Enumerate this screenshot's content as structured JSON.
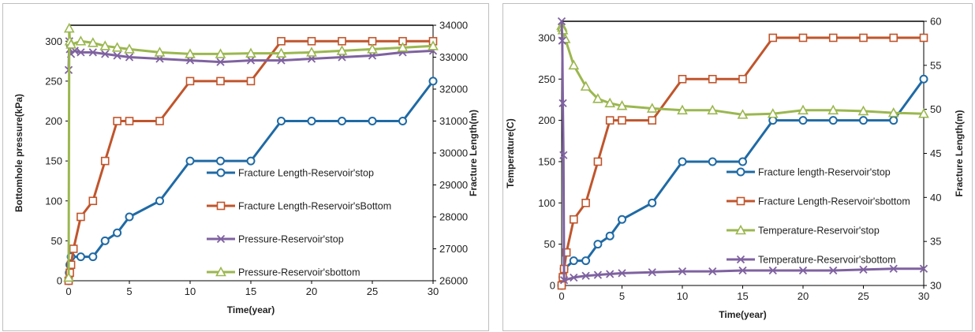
{
  "chart_data": [
    {
      "type": "line",
      "title": "",
      "xlabel": "Time(year)",
      "ylabel": "Bottomhole pressure(kPa)",
      "y2label": "Fracture Length(m)",
      "xlim": [
        0,
        30
      ],
      "ylim": [
        0,
        320
      ],
      "y2lim": [
        26000,
        34000
      ],
      "xticks": [
        "0",
        "5",
        "10",
        "15",
        "20",
        "25",
        "30"
      ],
      "yticks": [
        "0",
        "50",
        "100",
        "150",
        "200",
        "250",
        "300"
      ],
      "y2ticks": [
        "26000",
        "27000",
        "28000",
        "29000",
        "30000",
        "31000",
        "32000",
        "33000",
        "34000"
      ],
      "grid": false,
      "legend_position": "center-right",
      "series": [
        {
          "name": "Fracture Length-Reservoir'stop",
          "color": "#1f6aa5",
          "marker": "circle",
          "axis": "left",
          "x": [
            0,
            0.05,
            0.1,
            0.2,
            1,
            2,
            3,
            4,
            5,
            7.5,
            10,
            12.5,
            15,
            17.5,
            20,
            22.5,
            25,
            27.5,
            30
          ],
          "y": [
            0,
            10,
            20,
            30,
            30,
            30,
            50,
            60,
            80,
            100,
            150,
            150,
            150,
            200,
            200,
            200,
            200,
            200,
            250
          ]
        },
        {
          "name": "Fracture Length-Reservoir'sBottom",
          "color": "#c0552c",
          "marker": "square",
          "axis": "left",
          "x": [
            0,
            0.1,
            0.2,
            0.4,
            1,
            2,
            3,
            4,
            5,
            7.5,
            10,
            12.5,
            15,
            17.5,
            20,
            22.5,
            25,
            27.5,
            30
          ],
          "y": [
            0,
            10,
            20,
            40,
            80,
            100,
            150,
            200,
            200,
            200,
            250,
            250,
            250,
            300,
            300,
            300,
            300,
            300,
            300
          ]
        },
        {
          "name": "Pressure-Reservoir'stop",
          "color": "#7f62a0",
          "marker": "x",
          "axis": "right",
          "x": [
            0,
            0.05,
            0.1,
            0.2,
            0.5,
            1,
            2,
            3,
            4,
            5,
            7.5,
            10,
            12.5,
            15,
            17.5,
            20,
            22.5,
            25,
            27.5,
            30
          ],
          "y": [
            32600,
            33500,
            33250,
            33100,
            33200,
            33150,
            33150,
            33100,
            33050,
            33000,
            32950,
            32900,
            32850,
            32900,
            32900,
            32950,
            33000,
            33050,
            33150,
            33200
          ]
        },
        {
          "name": "Pressure-Reservoir'sbottom",
          "color": "#9bb74f",
          "marker": "triangle",
          "axis": "right",
          "x": [
            0,
            0.05,
            0.1,
            0.2,
            1,
            2,
            3,
            4,
            5,
            7.5,
            10,
            12.5,
            15,
            17.5,
            20,
            22.5,
            25,
            27.5,
            30
          ],
          "y": [
            26100,
            33900,
            33500,
            33400,
            33500,
            33450,
            33350,
            33300,
            33250,
            33150,
            33100,
            33100,
            33120,
            33120,
            33150,
            33200,
            33250,
            33300,
            33350
          ]
        }
      ]
    },
    {
      "type": "line",
      "title": "",
      "xlabel": "Time(year)",
      "ylabel": "Temperature(C)",
      "y2label": "Fracture Length(m)",
      "xlim": [
        0,
        30
      ],
      "ylim": [
        0,
        320
      ],
      "y2lim": [
        30,
        60
      ],
      "xticks": [
        "0",
        "5",
        "10",
        "15",
        "20",
        "25",
        "30"
      ],
      "yticks": [
        "0",
        "50",
        "100",
        "150",
        "200",
        "250",
        "300"
      ],
      "y2ticks": [
        "30",
        "35",
        "40",
        "45",
        "50",
        "55",
        "60"
      ],
      "grid": false,
      "legend_position": "center-right",
      "series": [
        {
          "name": "Fracture length-Reservoir'stop",
          "color": "#1f6aa5",
          "marker": "circle",
          "axis": "left",
          "x": [
            0,
            0.1,
            0.2,
            1,
            2,
            3,
            4,
            5,
            7.5,
            10,
            12.5,
            15,
            17.5,
            20,
            22.5,
            25,
            27.5,
            30
          ],
          "y": [
            0,
            10,
            20,
            30,
            30,
            50,
            60,
            80,
            100,
            150,
            150,
            150,
            200,
            200,
            200,
            200,
            200,
            250
          ]
        },
        {
          "name": "Fracture Length-Reservoir'sbottom",
          "color": "#c0552c",
          "marker": "square",
          "axis": "left",
          "x": [
            0,
            0.1,
            0.2,
            0.4,
            1,
            2,
            3,
            4,
            5,
            7.5,
            10,
            12.5,
            15,
            17.5,
            20,
            22.5,
            25,
            27.5,
            30
          ],
          "y": [
            0,
            10,
            20,
            40,
            80,
            100,
            150,
            200,
            200,
            200,
            250,
            250,
            250,
            300,
            300,
            300,
            300,
            300,
            300
          ]
        },
        {
          "name": "Temperature-Reservoir'stop",
          "color": "#9bb74f",
          "marker": "triangle",
          "axis": "right",
          "x": [
            0,
            0.05,
            0.1,
            0.3,
            1,
            2,
            3,
            4,
            5,
            7.5,
            10,
            12.5,
            15,
            17.5,
            20,
            22.5,
            25,
            27.5,
            30
          ],
          "y": [
            59.5,
            59.3,
            59,
            58,
            55,
            52.6,
            51.2,
            50.7,
            50.4,
            50.1,
            49.9,
            49.9,
            49.4,
            49.5,
            49.9,
            49.9,
            49.8,
            49.6,
            49.5
          ]
        },
        {
          "name": "Temperature-Reservoir'sbottom",
          "color": "#7f62a0",
          "marker": "x",
          "axis": "right",
          "x": [
            0,
            0.05,
            0.1,
            0.15,
            0.2,
            1,
            2,
            3,
            4,
            5,
            7.5,
            10,
            12.5,
            15,
            17.5,
            20,
            22.5,
            25,
            27.5,
            30
          ],
          "y": [
            60,
            57.8,
            50.7,
            44.8,
            30.6,
            30.9,
            31.1,
            31.2,
            31.3,
            31.4,
            31.5,
            31.6,
            31.6,
            31.7,
            31.7,
            31.7,
            31.7,
            31.8,
            31.9,
            31.9
          ]
        }
      ]
    }
  ]
}
